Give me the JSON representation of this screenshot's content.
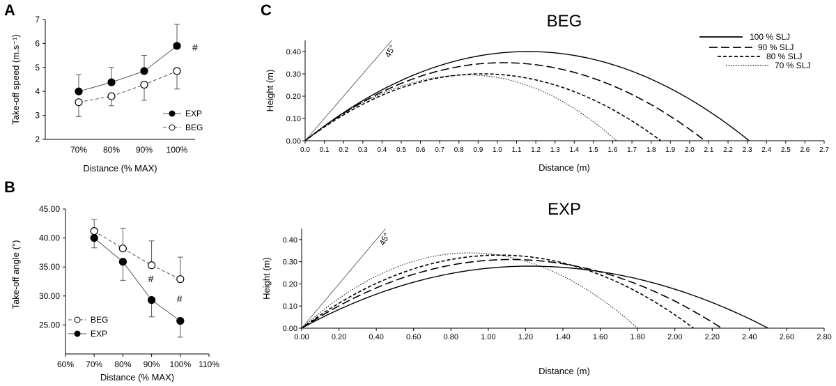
{
  "panel_labels": [
    "A",
    "B",
    "C"
  ],
  "chart_data": [
    {
      "id": "A",
      "type": "line",
      "title": "",
      "xlabel": "Distance (% MAX)",
      "ylabel": "Take-off speed (m.s⁻¹)",
      "categories": [
        "70%",
        "80%",
        "90%",
        "100%"
      ],
      "yticks": [
        "2",
        "3",
        "4",
        "5",
        "6",
        "7"
      ],
      "ylim": [
        2,
        7
      ],
      "series": [
        {
          "name": "EXP",
          "marker": "filled",
          "dash": "solid",
          "values": [
            4.0,
            4.38,
            4.85,
            5.9
          ],
          "err": [
            0.7,
            0.62,
            0.65,
            0.9
          ]
        },
        {
          "name": "BEG",
          "marker": "open",
          "dash": "dashed",
          "values": [
            3.55,
            3.8,
            4.28,
            4.85
          ],
          "err": [
            0.6,
            0.4,
            0.65,
            0.75
          ]
        }
      ],
      "legend": [
        "EXP",
        "BEG"
      ],
      "legend_position": "bottom-right",
      "annotations": [
        {
          "text": "#",
          "category": "100%",
          "y": 5.85
        }
      ]
    },
    {
      "id": "B",
      "type": "scatter",
      "title": "",
      "xlabel": "Distance (% MAX)",
      "ylabel": "Take-off angle (°)",
      "xticks": [
        "60%",
        "70%",
        "80%",
        "90%",
        "100%",
        "110%"
      ],
      "xlim": [
        60,
        110
      ],
      "yticks": [
        "25.00",
        "30.00",
        "35.00",
        "40.00",
        "45.00"
      ],
      "ylim": [
        20,
        45
      ],
      "series": [
        {
          "name": "BEG",
          "marker": "open",
          "dash": "dashed",
          "x": [
            70,
            80,
            90,
            100
          ],
          "values": [
            41.2,
            38.2,
            35.3,
            32.9
          ],
          "err": [
            2.0,
            3.5,
            4.2,
            3.8
          ]
        },
        {
          "name": "EXP",
          "marker": "filled",
          "dash": "solid",
          "x": [
            70,
            80,
            90,
            100
          ],
          "values": [
            40.0,
            35.9,
            29.3,
            25.7
          ],
          "err": [
            1.7,
            3.2,
            2.9,
            2.8
          ]
        }
      ],
      "legend": [
        "BEG",
        "EXP"
      ],
      "legend_position": "bottom-left",
      "annotations": [
        {
          "text": "#",
          "x": 90,
          "y": 33.0
        },
        {
          "text": "#",
          "x": 100,
          "y": 29.5
        }
      ]
    },
    {
      "id": "C-BEG",
      "type": "line",
      "title": "BEG",
      "xlabel": "Distance (m)",
      "ylabel": "Height (m)",
      "xticks": [
        "0.0",
        "0.1",
        "0.2",
        "0.3",
        "0.4",
        "0.5",
        "0.6",
        "0.7",
        "0.8",
        "0.9",
        "1.0",
        "1.1",
        "1.2",
        "1.3",
        "1.4",
        "1.5",
        "1.6",
        "1.7",
        "1.8",
        "1.9",
        "2.0",
        "2.1",
        "2.2",
        "2.3",
        "2.4",
        "2.5",
        "2.6",
        "2.7"
      ],
      "xlim": [
        0,
        2.7
      ],
      "yticks": [
        "0.00",
        "0.10",
        "0.20",
        "0.30",
        "0.40"
      ],
      "ylim": [
        0,
        0.45
      ],
      "series": [
        {
          "name": "100 % SLJ",
          "dash": "solid",
          "range": 2.31,
          "peak_x": 1.16,
          "peak_y": 0.4
        },
        {
          "name": "90 % SLJ",
          "dash": "longdash",
          "range": 2.08,
          "peak_x": 1.03,
          "peak_y": 0.35
        },
        {
          "name": "80 % SLJ",
          "dash": "shortdash",
          "range": 1.85,
          "peak_x": 0.92,
          "peak_y": 0.3
        },
        {
          "name": "70 % SLJ",
          "dash": "dotted",
          "range": 1.62,
          "peak_x": 0.85,
          "peak_y": 0.295
        }
      ],
      "reference_line": {
        "label": "45°",
        "angle_deg": 45
      },
      "legend": [
        "100 % SLJ",
        "90 % SLJ",
        "80 % SLJ",
        "70 % SLJ"
      ],
      "legend_position": "top-right"
    },
    {
      "id": "C-EXP",
      "type": "line",
      "title": "EXP",
      "xlabel": "Distance (m)",
      "ylabel": "Height (m)",
      "xticks": [
        "0.00",
        "0.20",
        "0.40",
        "0.60",
        "0.80",
        "1.00",
        "1.20",
        "1.40",
        "1.60",
        "1.80",
        "2.00",
        "2.20",
        "2.40",
        "2.60",
        "2.80"
      ],
      "xlim": [
        0,
        2.8
      ],
      "yticks": [
        "0.00",
        "0.10",
        "0.20",
        "0.30",
        "0.40"
      ],
      "ylim": [
        0,
        0.45
      ],
      "series": [
        {
          "name": "100 % SLJ",
          "dash": "solid",
          "range": 2.5,
          "peak_x": 1.22,
          "peak_y": 0.28
        },
        {
          "name": "90 % SLJ",
          "dash": "longdash",
          "range": 2.25,
          "peak_x": 1.12,
          "peak_y": 0.31
        },
        {
          "name": "80 % SLJ",
          "dash": "shortdash",
          "range": 2.1,
          "peak_x": 1.06,
          "peak_y": 0.33
        },
        {
          "name": "70 % SLJ",
          "dash": "dotted",
          "range": 1.8,
          "peak_x": 0.9,
          "peak_y": 0.34
        }
      ],
      "reference_line": {
        "label": "45°",
        "angle_deg": 45
      }
    }
  ]
}
